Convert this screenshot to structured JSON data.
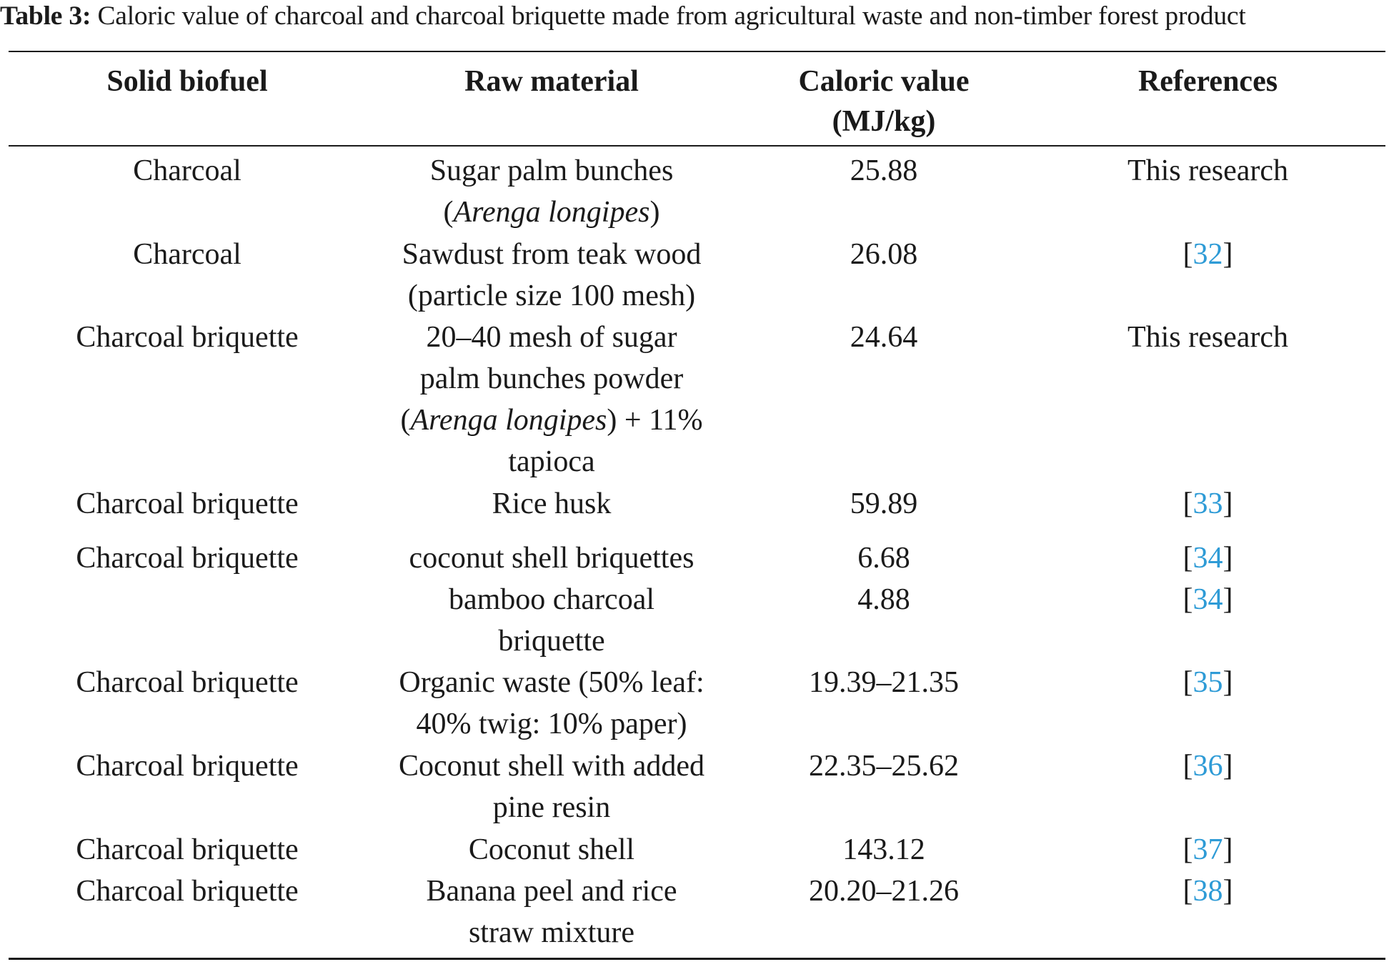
{
  "caption": {
    "label": "Table 3:",
    "text": "Caloric value of charcoal and charcoal briquette made from agricultural waste and non-timber forest product"
  },
  "headers": {
    "solid_biofuel": "Solid biofuel",
    "raw_material": "Raw material",
    "caloric_value_line1": "Caloric value",
    "caloric_value_line2": "(MJ/kg)",
    "references": "References"
  },
  "rows": [
    {
      "biofuel": "Charcoal",
      "raw": {
        "line1": "Sugar palm bunches",
        "line2_pre": "(",
        "line2_italic": "Arenga longipes",
        "line2_post": ")"
      },
      "value": "25.88",
      "ref_text": "This research"
    },
    {
      "biofuel": "Charcoal",
      "raw": {
        "line1": "Sawdust from teak wood",
        "line2": "(particle size 100 mesh)"
      },
      "value": "26.08",
      "ref_num": "32"
    },
    {
      "biofuel": "Charcoal briquette",
      "raw": {
        "line1": "20–40 mesh of sugar",
        "line2": "palm bunches powder",
        "line3_pre": "(",
        "line3_italic": "Arenga longipes",
        "line3_post": ") + 11%",
        "line4": "tapioca"
      },
      "value": "24.64",
      "ref_text": "This research"
    },
    {
      "biofuel": "Charcoal briquette",
      "raw": {
        "line1": "Rice husk"
      },
      "value": "59.89",
      "ref_num": "33"
    },
    {
      "biofuel": "Charcoal briquette",
      "raw": {
        "line1": "coconut shell briquettes"
      },
      "value": "6.68",
      "ref_num": "34"
    },
    {
      "biofuel": "",
      "raw": {
        "line1": "bamboo charcoal",
        "line2": "briquette"
      },
      "value": "4.88",
      "ref_num": "34"
    },
    {
      "biofuel": "Charcoal briquette",
      "raw": {
        "line1": "Organic waste (50% leaf:",
        "line2": "40% twig: 10% paper)"
      },
      "value": "19.39–21.35",
      "ref_num": "35"
    },
    {
      "biofuel": "Charcoal briquette",
      "raw": {
        "line1": "Coconut shell with added",
        "line2": "pine resin"
      },
      "value": "22.35–25.62",
      "ref_num": "36"
    },
    {
      "biofuel": "Charcoal briquette",
      "raw": {
        "line1": "Coconut shell"
      },
      "value": "143.12",
      "ref_num": "37"
    },
    {
      "biofuel": "Charcoal briquette",
      "raw": {
        "line1": "Banana peel and rice",
        "line2": "straw mixture"
      },
      "value": "20.20–21.26",
      "ref_num": "38"
    }
  ],
  "colors": {
    "text": "#1a1a1a",
    "reference_link": "#2e9bd6"
  }
}
